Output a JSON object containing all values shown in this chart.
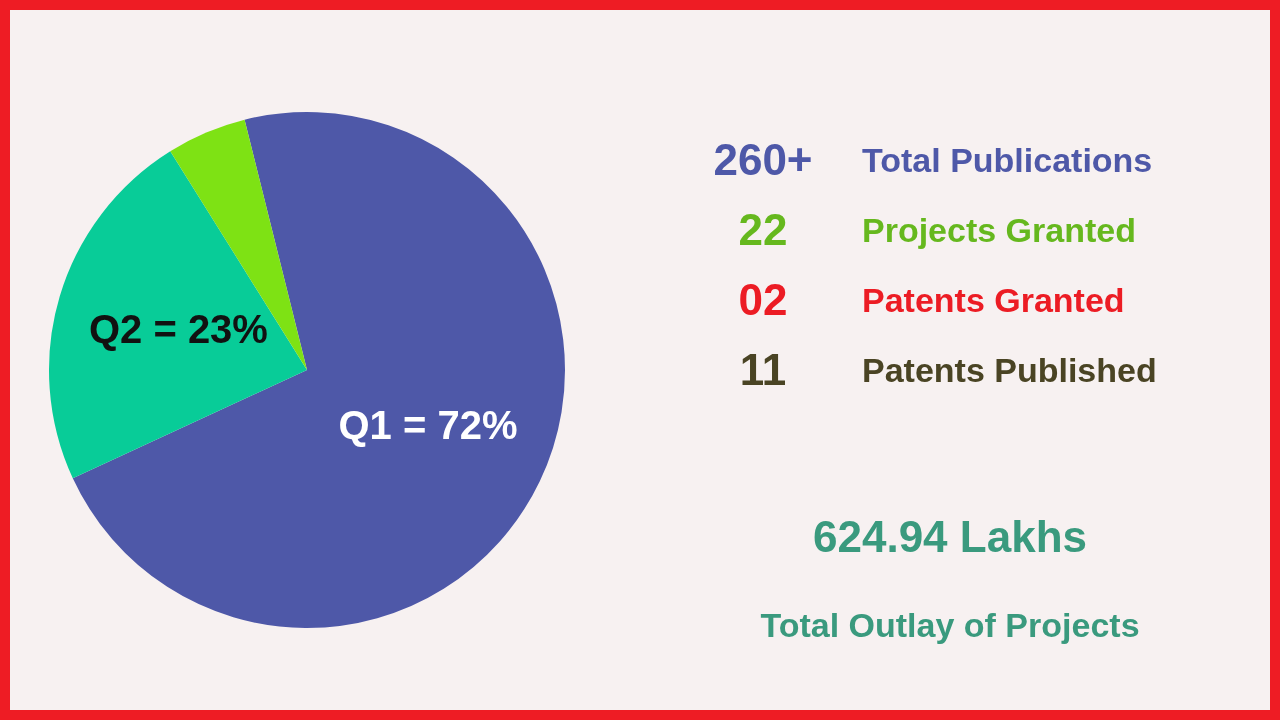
{
  "chart_data": [
    {
      "type": "pie",
      "categories": [
        null,
        null,
        null
      ],
      "values": [
        72,
        23,
        5
      ],
      "colors": [
        "#4e58a8",
        "#08cc98",
        "#7ee214"
      ],
      "value_labels": [
        "Q1 = 72%",
        "Q2 = 23%",
        null
      ]
    },
    {
      "type": "other",
      "categories": [
        "Total Publications",
        "Projects Granted",
        "Patents Granted",
        "Patents Published"
      ],
      "value_labels": [
        "260+",
        "22",
        "02",
        "11"
      ],
      "colors": [
        "#4e58a8",
        "#66b81e",
        "#ec1c24",
        "#4a4424"
      ],
      "annotations": [
        "624.94 Lakhs",
        "Total Outlay of Projects"
      ]
    }
  ]
}
